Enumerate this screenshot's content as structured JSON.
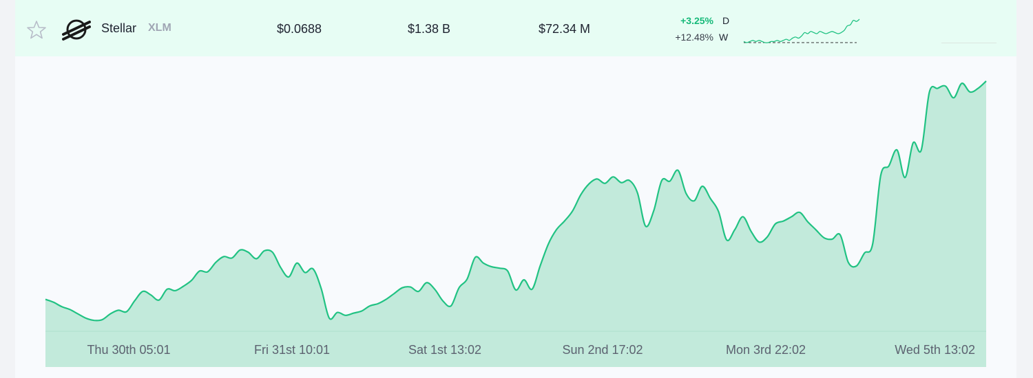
{
  "coin": {
    "name": "Stellar",
    "symbol": "XLM",
    "price": "$0.0688",
    "market_cap": "$1.38 B",
    "volume": "$72.34 M",
    "change_day": "+3.25%",
    "change_day_label": "D",
    "change_week": "+12.48%",
    "change_week_label": "W",
    "icons": [
      "star-icon",
      "stellar-logo-icon"
    ]
  },
  "colors": {
    "accent": "#16b979",
    "line": "#21c283",
    "fill": "#c2eadb",
    "row_background": "#e7fdf4"
  },
  "sparkline": {
    "values": [
      5,
      4,
      5,
      6,
      5,
      6,
      5,
      4,
      4,
      5,
      5,
      6,
      5,
      6,
      7,
      6,
      8,
      9,
      8,
      10,
      13,
      12,
      14,
      13,
      12,
      14,
      13,
      12,
      13,
      14,
      13,
      12,
      13,
      15,
      19,
      20,
      24,
      23,
      25
    ],
    "baseline": 4
  },
  "chart_data": {
    "type": "area",
    "x_ticks": [
      "Thu 30th 05:01",
      "Fri 31st 10:01",
      "Sat 1st 13:02",
      "Sun 2nd 17:02",
      "Mon 3rd 22:02",
      "Wed 5th 13:02"
    ],
    "y": [
      44,
      40,
      34,
      30,
      24,
      18,
      15,
      16,
      24,
      29,
      27,
      42,
      55,
      50,
      43,
      58,
      56,
      62,
      70,
      83,
      82,
      95,
      103,
      101,
      112,
      109,
      100,
      111,
      109,
      88,
      75,
      94,
      81,
      86,
      59,
      18,
      26,
      22,
      25,
      28,
      35,
      38,
      44,
      52,
      60,
      61,
      55,
      67,
      58,
      42,
      35,
      60,
      72,
      102,
      94,
      89,
      87,
      83,
      57,
      71,
      58,
      90,
      120,
      140,
      152,
      166,
      188,
      203,
      210,
      204,
      213,
      205,
      208,
      191,
      145,
      166,
      208,
      207,
      222,
      190,
      180,
      200,
      183,
      165,
      126,
      140,
      158,
      138,
      123,
      130,
      148,
      152,
      158,
      164,
      151,
      140,
      129,
      127,
      133,
      95,
      90,
      108,
      120,
      215,
      228,
      250,
      212,
      260,
      250,
      330,
      335,
      338,
      322,
      342,
      330,
      335,
      345
    ]
  }
}
